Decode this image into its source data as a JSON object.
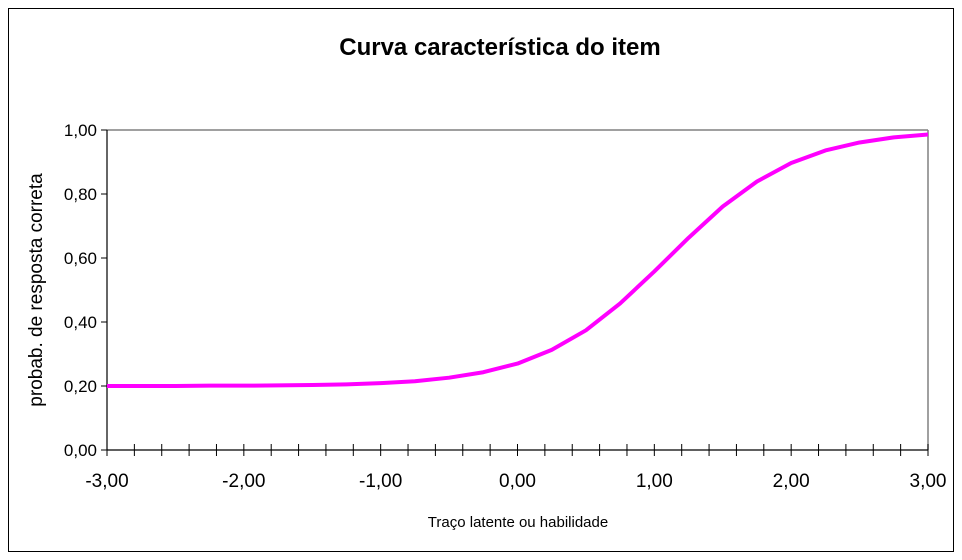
{
  "chart_data": {
    "type": "line",
    "title": "Curva característica do item",
    "xlabel": "Traço latente ou habilidade",
    "ylabel": "probab. de resposta correta",
    "x": [
      -3,
      -2.75,
      -2.5,
      -2.25,
      -2,
      -1.75,
      -1.5,
      -1.25,
      -1,
      -0.75,
      -0.5,
      -0.25,
      0,
      0.25,
      0.5,
      0.75,
      1,
      1.25,
      1.5,
      1.75,
      2,
      2.25,
      2.5,
      2.75,
      3
    ],
    "series": [
      {
        "color": "#ff00ff",
        "values": [
          0.2,
          0.2,
          0.2,
          0.201,
          0.201,
          0.202,
          0.203,
          0.205,
          0.209,
          0.215,
          0.226,
          0.243,
          0.27,
          0.313,
          0.374,
          0.458,
          0.558,
          0.663,
          0.761,
          0.839,
          0.897,
          0.936,
          0.961,
          0.977,
          0.986
        ]
      }
    ],
    "xlim": [
      -3,
      3
    ],
    "ylim": [
      0,
      1
    ],
    "xticks": [
      {
        "value": -3,
        "label": "-3,00"
      },
      {
        "value": -2,
        "label": "-2,00"
      },
      {
        "value": -1,
        "label": "-1,00"
      },
      {
        "value": 0,
        "label": "0,00"
      },
      {
        "value": 1,
        "label": "1,00"
      },
      {
        "value": 2,
        "label": "2,00"
      },
      {
        "value": 3,
        "label": "3,00"
      }
    ],
    "xminorticks": [
      -2.8,
      -2.6,
      -2.4,
      -2.2,
      -1.8,
      -1.6,
      -1.4,
      -1.2,
      -0.8,
      -0.6,
      -0.4,
      -0.2,
      0.2,
      0.4,
      0.6,
      0.8,
      1.2,
      1.4,
      1.6,
      1.8,
      2.2,
      2.4,
      2.6,
      2.8
    ],
    "yticks": [
      {
        "value": 0,
        "label": "0,00"
      },
      {
        "value": 0.2,
        "label": "0,20"
      },
      {
        "value": 0.4,
        "label": "0,40"
      },
      {
        "value": 0.6,
        "label": "0,60"
      },
      {
        "value": 0.8,
        "label": "0,80"
      },
      {
        "value": 1,
        "label": "1,00"
      }
    ]
  }
}
